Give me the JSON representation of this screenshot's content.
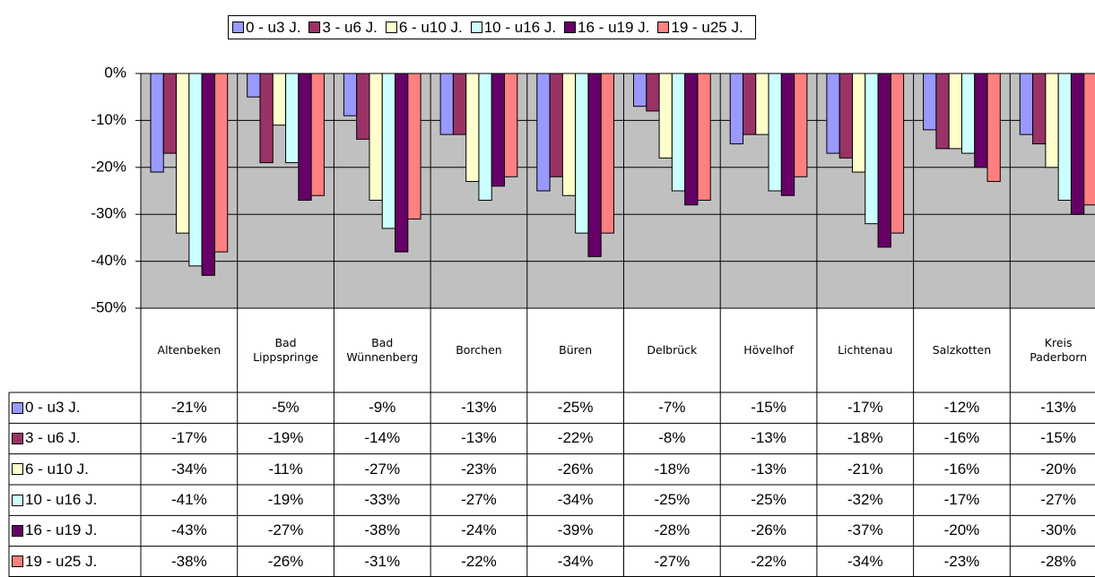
{
  "chart_data": {
    "type": "bar",
    "categories": [
      "Altenbeken",
      "Bad Lippspringe",
      "Bad Wünnenberg",
      "Borchen",
      "Büren",
      "Delbrück",
      "Hövelhof",
      "Lichtenau",
      "Salzkotten",
      "Kreis Paderborn"
    ],
    "series": [
      {
        "name": "0 - u3 J.",
        "color": "#9999ff",
        "values": [
          -21,
          -5,
          -9,
          -13,
          -25,
          -7,
          -15,
          -17,
          -12,
          -13
        ],
        "value_labels": [
          "-21%",
          "-5%",
          "-9%",
          "-13%",
          "-25%",
          "-7%",
          "-15%",
          "-17%",
          "-12%",
          "-13%"
        ]
      },
      {
        "name": "3 - u6 J.",
        "color": "#993366",
        "values": [
          -17,
          -19,
          -14,
          -13,
          -22,
          -8,
          -13,
          -18,
          -16,
          -15
        ],
        "value_labels": [
          "-17%",
          "-19%",
          "-14%",
          "-13%",
          "-22%",
          "-8%",
          "-13%",
          "-18%",
          "-16%",
          "-15%"
        ]
      },
      {
        "name": "6 - u10 J.",
        "color": "#ffffcc",
        "values": [
          -34,
          -11,
          -27,
          -23,
          -26,
          -18,
          -13,
          -21,
          -16,
          -20
        ],
        "value_labels": [
          "-34%",
          "-11%",
          "-27%",
          "-23%",
          "-26%",
          "-18%",
          "-13%",
          "-21%",
          "-16%",
          "-20%"
        ]
      },
      {
        "name": "10 - u16 J.",
        "color": "#ccffff",
        "values": [
          -41,
          -19,
          -33,
          -27,
          -34,
          -25,
          -25,
          -32,
          -17,
          -27
        ],
        "value_labels": [
          "-41%",
          "-19%",
          "-33%",
          "-27%",
          "-34%",
          "-25%",
          "-25%",
          "-32%",
          "-17%",
          "-27%"
        ]
      },
      {
        "name": "16 - u19 J.",
        "color": "#660066",
        "values": [
          -43,
          -27,
          -38,
          -24,
          -39,
          -28,
          -26,
          -37,
          -20,
          -30
        ],
        "value_labels": [
          "-43%",
          "-27%",
          "-38%",
          "-24%",
          "-39%",
          "-28%",
          "-26%",
          "-37%",
          "-20%",
          "-30%"
        ]
      },
      {
        "name": "19 - u25 J.",
        "color": "#ff8080",
        "values": [
          -38,
          -26,
          -31,
          -22,
          -34,
          -27,
          -22,
          -34,
          -23,
          -28
        ],
        "value_labels": [
          "-38%",
          "-26%",
          "-31%",
          "-22%",
          "-34%",
          "-27%",
          "-22%",
          "-34%",
          "-23%",
          "-28%"
        ]
      }
    ],
    "ylim": [
      -50,
      0
    ],
    "yticks": [
      {
        "value": 0,
        "label": "0%"
      },
      {
        "value": -10,
        "label": "-10%"
      },
      {
        "value": -20,
        "label": "-20%"
      },
      {
        "value": -30,
        "label": "-30%"
      },
      {
        "value": -40,
        "label": "-40%"
      },
      {
        "value": -50,
        "label": "-50%"
      }
    ],
    "grid": true,
    "legend": "top",
    "plot_background": "#c0c0c0"
  }
}
